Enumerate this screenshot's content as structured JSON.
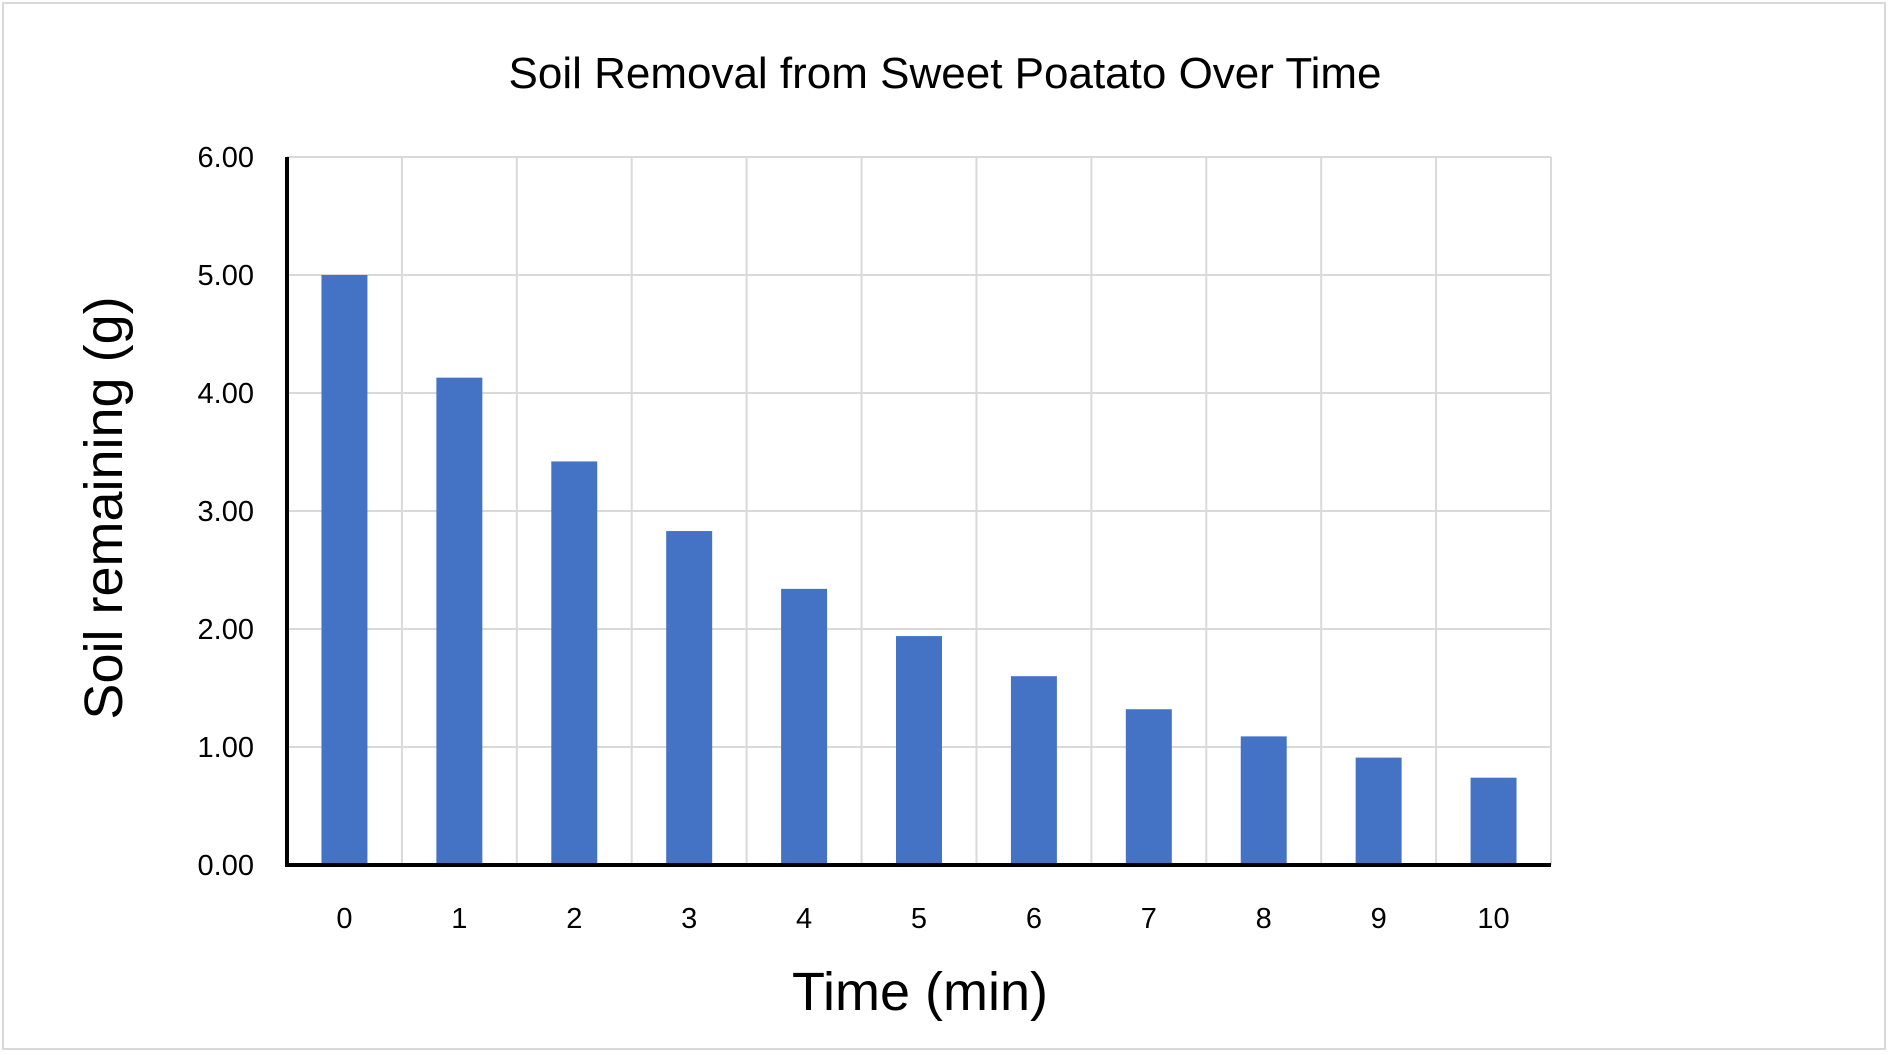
{
  "chart_data": {
    "type": "bar",
    "title": "Soil Removal from Sweet Poatato Over Time",
    "xlabel": "Time (min)",
    "ylabel": "Soil remaining (g)",
    "categories": [
      "0",
      "1",
      "2",
      "3",
      "4",
      "5",
      "6",
      "7",
      "8",
      "9",
      "10"
    ],
    "values": [
      5.0,
      4.13,
      3.42,
      2.83,
      2.34,
      1.94,
      1.6,
      1.32,
      1.09,
      0.91,
      0.74
    ],
    "ylim": [
      0,
      6
    ],
    "yticks": [
      "0.00",
      "1.00",
      "2.00",
      "3.00",
      "4.00",
      "5.00",
      "6.00"
    ],
    "grid": true,
    "legend": "none",
    "bar_color": "#4472C4",
    "grid_color": "#d9d9d9",
    "axis_color": "#000000"
  }
}
